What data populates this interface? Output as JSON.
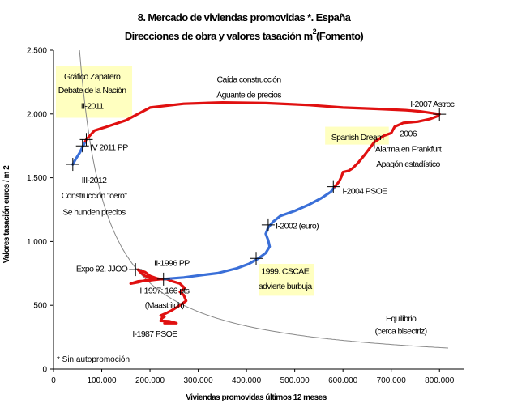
{
  "chart_data": {
    "type": "line",
    "title_line1": "8. Mercado de viviendas promovidas *. España",
    "title_line2": "Direcciones de obra y valores tasación m",
    "title_sup": "2",
    "title_suffix": "(Fomento)",
    "xlabel": "Viviendas promovidas últimos 12 meses",
    "ylabel": "Valores tasación euros / m 2",
    "xlim": [
      0,
      850000
    ],
    "ylim": [
      0,
      2500
    ],
    "x_ticks": [
      0,
      100000,
      200000,
      300000,
      400000,
      500000,
      600000,
      700000,
      800000
    ],
    "x_tick_labels": [
      "0",
      "100.000",
      "200.000",
      "300.000",
      "400.000",
      "500.000",
      "600.000",
      "700.000",
      "800.000"
    ],
    "y_ticks": [
      0,
      500,
      1000,
      1500,
      2000,
      2500
    ],
    "y_tick_labels": [
      "0",
      "500",
      "1.000",
      "1.500",
      "2.000",
      "2.500"
    ],
    "grid": false,
    "colors": {
      "boom": "#3a6fd8",
      "crisis": "#e01010",
      "curve": "#888888",
      "highlight": "#ffffc0"
    },
    "series": [
      {
        "color": "#e01010",
        "points": [
          [
            230000,
            360
          ],
          [
            255000,
            360
          ],
          [
            240000,
            375
          ],
          [
            222000,
            378
          ],
          [
            225000,
            400
          ],
          [
            230000,
            410
          ],
          [
            222000,
            420
          ],
          [
            232000,
            435
          ],
          [
            245000,
            460
          ],
          [
            262000,
            500
          ],
          [
            275000,
            535
          ],
          [
            270000,
            580
          ],
          [
            262000,
            605
          ],
          [
            272000,
            635
          ],
          [
            262000,
            670
          ],
          [
            245000,
            690
          ],
          [
            235000,
            705
          ],
          [
            215000,
            705
          ],
          [
            205000,
            712
          ],
          [
            190000,
            730
          ],
          [
            180000,
            760
          ],
          [
            175000,
            780
          ],
          [
            190000,
            760
          ],
          [
            200000,
            730
          ],
          [
            215000,
            710
          ],
          [
            222000,
            705
          ],
          [
            210000,
            700
          ],
          [
            195000,
            693
          ],
          [
            175000,
            688
          ],
          [
            160000,
            670
          ],
          [
            175000,
            680
          ],
          [
            190000,
            695
          ],
          [
            210000,
            705
          ],
          [
            230000,
            706
          ]
        ]
      },
      {
        "color": "#3a6fd8",
        "points": [
          [
            230000,
            706
          ],
          [
            270000,
            718
          ],
          [
            310000,
            738
          ],
          [
            340000,
            752
          ],
          [
            380000,
            790
          ],
          [
            405000,
            825
          ],
          [
            425000,
            868
          ],
          [
            440000,
            910
          ],
          [
            448000,
            960
          ],
          [
            445000,
            1010
          ],
          [
            440000,
            1060
          ],
          [
            445000,
            1110
          ],
          [
            455000,
            1155
          ],
          [
            470000,
            1200
          ],
          [
            500000,
            1240
          ],
          [
            530000,
            1290
          ],
          [
            555000,
            1340
          ],
          [
            575000,
            1390
          ],
          [
            583000,
            1430
          ]
        ]
      },
      {
        "color": "#e01010",
        "points": [
          [
            583000,
            1430
          ],
          [
            592000,
            1470
          ],
          [
            597000,
            1510
          ],
          [
            600000,
            1545
          ],
          [
            612000,
            1555
          ],
          [
            620000,
            1575
          ],
          [
            632000,
            1620
          ],
          [
            645000,
            1680
          ],
          [
            665000,
            1780
          ],
          [
            685000,
            1830
          ],
          [
            700000,
            1850
          ],
          [
            707000,
            1900
          ],
          [
            725000,
            1930
          ],
          [
            755000,
            1940
          ],
          [
            780000,
            1960
          ],
          [
            797000,
            1985
          ],
          [
            800000,
            1998
          ],
          [
            760000,
            2020
          ],
          [
            730000,
            2030
          ],
          [
            670000,
            2040
          ],
          [
            600000,
            2050
          ],
          [
            530000,
            2070
          ],
          [
            440000,
            2085
          ],
          [
            350000,
            2090
          ],
          [
            270000,
            2080
          ],
          [
            200000,
            2050
          ],
          [
            150000,
            1950
          ],
          [
            110000,
            1900
          ],
          [
            85000,
            1870
          ],
          [
            68000,
            1800
          ],
          [
            64000,
            1770
          ]
        ]
      },
      {
        "color": "#3a6fd8",
        "points": [
          [
            64000,
            1770
          ],
          [
            55000,
            1700
          ],
          [
            45000,
            1640
          ],
          [
            40000,
            1605
          ]
        ]
      }
    ],
    "markers": [
      [
        40000,
        1605
      ],
      [
        60000,
        1750
      ],
      [
        68000,
        1800
      ],
      [
        170000,
        780
      ],
      [
        228000,
        705
      ],
      [
        420000,
        868
      ],
      [
        445000,
        1130
      ],
      [
        580000,
        1430
      ],
      [
        665000,
        1780
      ],
      [
        800000,
        1998
      ]
    ],
    "equilibrium_curve_k": 135000000,
    "annotations": [
      {
        "lines": [
          "Gráfico Zapatero",
          "Debate de la Nación",
          "II-2011"
        ],
        "highlight": true,
        "x": 80000,
        "y_lines": [
          2270,
          2165,
          2040
        ],
        "hx": [
          5000,
          163000
        ],
        "hy": [
          1970,
          2375
        ]
      },
      {
        "lines": [
          "IV 2011 PP"
        ],
        "highlight": false,
        "x": 115000,
        "y_lines": [
          1715
        ]
      },
      {
        "lines": [
          "III-2012",
          "Construcción \"cero\"",
          "Se hunden precios"
        ],
        "highlight": false,
        "x": 84000,
        "y_lines": [
          1460,
          1340,
          1210
        ]
      },
      {
        "lines": [
          "Caída construcción",
          "Aguante de precios"
        ],
        "highlight": false,
        "x": 405000,
        "y_lines": [
          2250,
          2130
        ]
      },
      {
        "lines": [
          "I-2007 Astroc"
        ],
        "highlight": false,
        "x": 785000,
        "y_lines": [
          2055
        ]
      },
      {
        "lines": [
          "Spanish Dream"
        ],
        "highlight": true,
        "x": 630000,
        "y_lines": [
          1795
        ],
        "hx": [
          563000,
          695000
        ],
        "hy": [
          1760,
          1900
        ]
      },
      {
        "lines": [
          "2006",
          "Alarma en Frankfurt",
          "Apagón estadístico"
        ],
        "highlight": false,
        "x": 735000,
        "y_lines": [
          1825,
          1705,
          1585
        ]
      },
      {
        "lines": [
          "I-2004 PSOE"
        ],
        "highlight": false,
        "x": 645000,
        "y_lines": [
          1375
        ]
      },
      {
        "lines": [
          "I-2002 (euro)"
        ],
        "highlight": false,
        "x": 505000,
        "y_lines": [
          1100
        ]
      },
      {
        "lines": [
          "1999: CSCAE",
          "advierte burbuja"
        ],
        "highlight": true,
        "x": 480000,
        "y_lines": [
          745,
          627
        ],
        "hx": [
          425000,
          540000
        ],
        "hy": [
          575,
          825
        ]
      },
      {
        "lines": [
          "II-1996 PP"
        ],
        "highlight": false,
        "x": 245000,
        "y_lines": [
          810
        ]
      },
      {
        "lines": [
          "Expo 92, JJOO"
        ],
        "highlight": false,
        "x": 100000,
        "y_lines": [
          765
        ]
      },
      {
        "lines": [
          "I-1997: 166 pts",
          "(Maastritch)"
        ],
        "highlight": false,
        "x": 230000,
        "y_lines": [
          593,
          478
        ]
      },
      {
        "lines": [
          "I-1987 PSOE"
        ],
        "highlight": false,
        "x": 210000,
        "y_lines": [
          255
        ]
      },
      {
        "lines": [
          "Equilibrio",
          "(cerca bisectriz)"
        ],
        "highlight": false,
        "x": 720000,
        "y_lines": [
          375,
          277
        ]
      }
    ],
    "footnote": "* Sin autopromoción"
  }
}
